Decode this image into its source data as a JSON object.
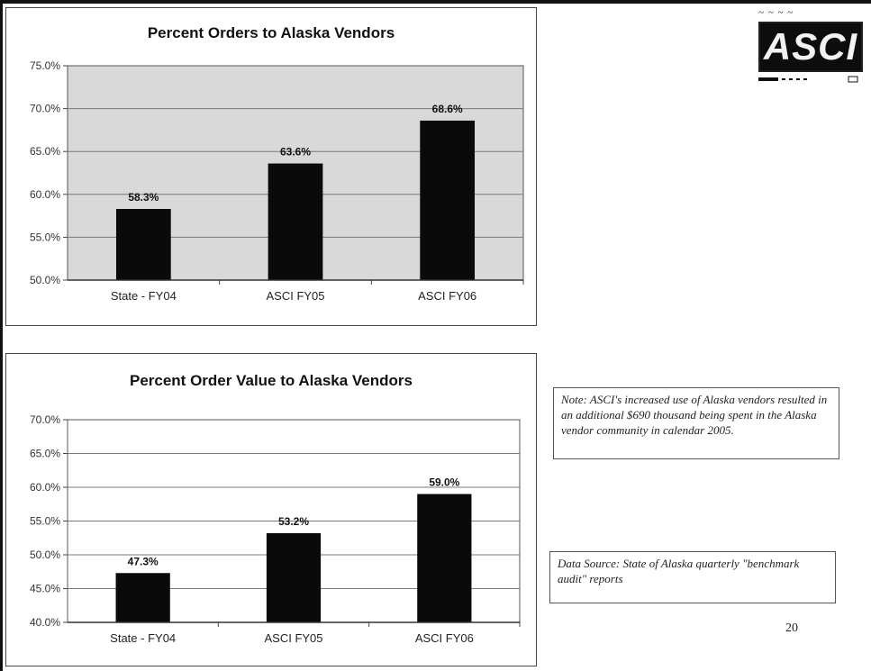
{
  "chart_data": [
    {
      "type": "bar",
      "title": "Percent Orders to Alaska Vendors",
      "categories": [
        "State - FY04",
        "ASCI FY05",
        "ASCI FY06"
      ],
      "values": [
        58.3,
        63.6,
        68.6
      ],
      "data_labels": [
        "58.3%",
        "63.6%",
        "68.6%"
      ],
      "ylim": [
        50,
        75
      ],
      "y_ticks": [
        50,
        55,
        60,
        65,
        70,
        75
      ],
      "y_tick_labels": [
        "50.0%",
        "55.0%",
        "60.0%",
        "65.0%",
        "70.0%",
        "75.0%"
      ],
      "grid": true,
      "plot_background": "#d9d9d9",
      "bar_color": "#0a0a0a"
    },
    {
      "type": "bar",
      "title": "Percent Order Value to Alaska Vendors",
      "categories": [
        "State - FY04",
        "ASCI FY05",
        "ASCI FY06"
      ],
      "values": [
        47.3,
        53.2,
        59.0
      ],
      "data_labels": [
        "47.3%",
        "53.2%",
        "59.0%"
      ],
      "ylim": [
        40,
        70
      ],
      "y_ticks": [
        40,
        45,
        50,
        55,
        60,
        65,
        70
      ],
      "y_tick_labels": [
        "40.0%",
        "45.0%",
        "50.0%",
        "55.0%",
        "60.0%",
        "65.0%",
        "70.0%"
      ],
      "grid": true,
      "plot_background": "#ffffff",
      "bar_color": "#0a0a0a"
    }
  ],
  "logo": {
    "text": "ASCI"
  },
  "note": {
    "text": "Note: ASCI's increased use of Alaska vendors resulted in an additional $690 thousand being spent in the Alaska vendor community in calendar 2005."
  },
  "source": {
    "text": "Data Source: State of Alaska quarterly \"benchmark audit\" reports"
  },
  "page": {
    "number": "20"
  }
}
